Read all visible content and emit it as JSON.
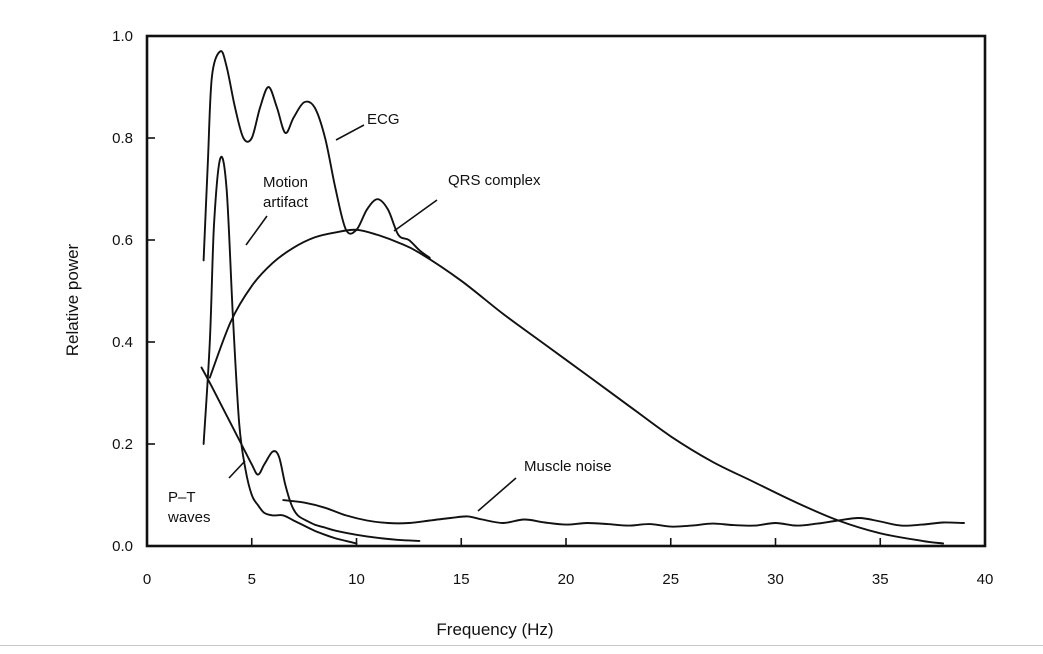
{
  "chart_data": {
    "type": "line",
    "title": "",
    "xlabel": "Frequency (Hz)",
    "ylabel": "Relative power",
    "xlim": [
      0,
      40
    ],
    "ylim": [
      0,
      1.0
    ],
    "x_ticks": [
      "0",
      "5",
      "10",
      "15",
      "20",
      "25",
      "30",
      "35",
      "40"
    ],
    "y_ticks": [
      "0.0",
      "0.2",
      "0.4",
      "0.6",
      "0.8",
      "1.0"
    ],
    "grid": false,
    "legend": "none",
    "series": [
      {
        "name": "ECG",
        "x": [
          2.7,
          2.9,
          3.1,
          3.5,
          3.8,
          4.2,
          4.6,
          5.0,
          5.4,
          5.8,
          6.2,
          6.6,
          7.0,
          7.5,
          8.0,
          8.5,
          9.0,
          9.5,
          10.0,
          10.5,
          11.0,
          11.5,
          12.0,
          12.5,
          13.0,
          13.5
        ],
        "y": [
          0.56,
          0.75,
          0.92,
          0.97,
          0.94,
          0.86,
          0.8,
          0.8,
          0.86,
          0.9,
          0.86,
          0.81,
          0.84,
          0.87,
          0.86,
          0.8,
          0.7,
          0.62,
          0.62,
          0.66,
          0.68,
          0.66,
          0.61,
          0.6,
          0.58,
          0.565
        ]
      },
      {
        "name": "QRS complex",
        "x": [
          3.0,
          4.0,
          5.0,
          6.0,
          7.0,
          8.0,
          9.0,
          10.0,
          11.0,
          12.0,
          13.0,
          15.0,
          17.0,
          19.0,
          21.0,
          23.0,
          25.0,
          27.0,
          29.0,
          31.0,
          33.0,
          35.0,
          37.0,
          38.0
        ],
        "y": [
          0.33,
          0.44,
          0.51,
          0.555,
          0.585,
          0.605,
          0.615,
          0.62,
          0.61,
          0.595,
          0.575,
          0.52,
          0.455,
          0.395,
          0.335,
          0.275,
          0.215,
          0.165,
          0.125,
          0.085,
          0.05,
          0.025,
          0.01,
          0.005
        ]
      },
      {
        "name": "Motion artifact",
        "x": [
          2.7,
          3.0,
          3.2,
          3.5,
          3.8,
          4.1,
          4.4,
          4.7,
          5.0,
          5.3,
          5.6,
          6.0,
          6.5,
          7.0,
          7.5,
          8.0,
          8.5,
          9.0,
          9.5,
          10.0
        ],
        "y": [
          0.2,
          0.4,
          0.63,
          0.76,
          0.7,
          0.45,
          0.24,
          0.15,
          0.1,
          0.08,
          0.065,
          0.06,
          0.06,
          0.05,
          0.04,
          0.03,
          0.022,
          0.015,
          0.01,
          0.005
        ]
      },
      {
        "name": "P-T waves",
        "x": [
          2.6,
          3.0,
          3.5,
          4.0,
          4.5,
          5.0,
          5.3,
          5.6,
          6.0,
          6.3,
          6.6,
          6.9,
          7.2,
          7.6,
          8.0,
          8.5,
          9.0,
          10.0,
          11.0,
          12.0,
          13.0
        ],
        "y": [
          0.35,
          0.32,
          0.28,
          0.24,
          0.2,
          0.16,
          0.14,
          0.16,
          0.185,
          0.175,
          0.12,
          0.08,
          0.06,
          0.05,
          0.042,
          0.036,
          0.03,
          0.022,
          0.016,
          0.012,
          0.01
        ]
      },
      {
        "name": "Muscle noise",
        "x": [
          6.5,
          7.5,
          8.5,
          9.5,
          10.5,
          11.5,
          12.5,
          13.5,
          14.5,
          15.3,
          16.0,
          17.0,
          18.0,
          19.0,
          20.0,
          21.0,
          22.0,
          23.0,
          24.0,
          25.0,
          26.0,
          27.0,
          28.0,
          29.0,
          30.0,
          31.0,
          32.0,
          33.0,
          34.0,
          35.0,
          36.0,
          37.0,
          38.0,
          39.0
        ],
        "y": [
          0.09,
          0.085,
          0.075,
          0.06,
          0.05,
          0.045,
          0.045,
          0.05,
          0.055,
          0.058,
          0.052,
          0.045,
          0.052,
          0.046,
          0.042,
          0.045,
          0.043,
          0.04,
          0.043,
          0.038,
          0.04,
          0.044,
          0.041,
          0.04,
          0.045,
          0.04,
          0.044,
          0.05,
          0.055,
          0.048,
          0.04,
          0.042,
          0.046,
          0.045
        ]
      }
    ],
    "annotations": [
      {
        "key": "ecg",
        "lines": [
          "ECG"
        ]
      },
      {
        "key": "qrs",
        "lines": [
          "QRS complex"
        ]
      },
      {
        "key": "motion",
        "lines": [
          "Motion",
          "artifact"
        ]
      },
      {
        "key": "pt",
        "lines": [
          "P–T",
          "waves"
        ]
      },
      {
        "key": "muscle",
        "lines": [
          "Muscle noise"
        ]
      }
    ]
  }
}
